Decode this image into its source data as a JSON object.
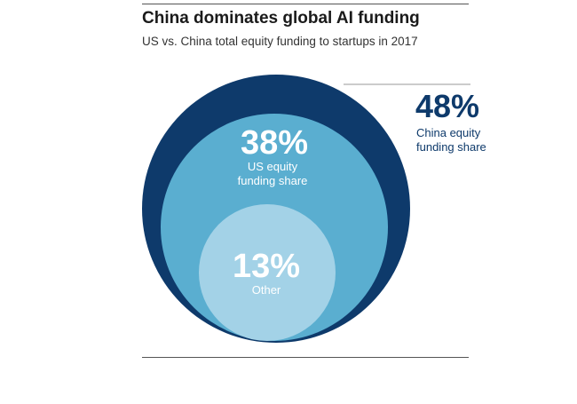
{
  "chart_data": {
    "type": "pie",
    "title": "China dominates global AI funding",
    "subtitle": "US vs. China total equity funding to startups in 2017",
    "slices": [
      {
        "value_label": "48%",
        "value": 48,
        "label_lines": [
          "China equity",
          "funding share"
        ],
        "color": "#0e3a6b",
        "label_color_value": "#0e3a6b",
        "label_color_text": "#0e3a6b"
      },
      {
        "value_label": "38%",
        "value": 38,
        "label_lines": [
          "US equity",
          "funding share"
        ],
        "color": "#5aaed0",
        "label_color_value": "#ffffff",
        "label_color_text": "#ffffff"
      },
      {
        "value_label": "13%",
        "value": 13,
        "label_lines": [
          "Other"
        ],
        "color": "#a3d2e7",
        "label_color_value": "#ffffff",
        "label_color_text": "#ffffff"
      }
    ]
  }
}
